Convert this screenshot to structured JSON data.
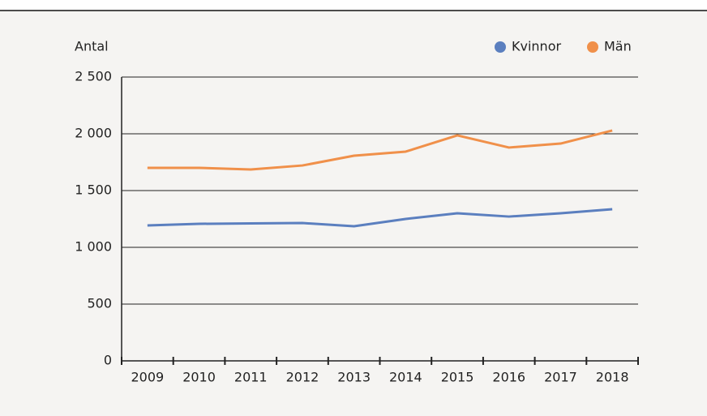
{
  "chart_data": {
    "type": "line",
    "y_label": "Antal",
    "categories": [
      "2009",
      "2010",
      "2011",
      "2012",
      "2013",
      "2014",
      "2015",
      "2016",
      "2017",
      "2018"
    ],
    "series": [
      {
        "name": "Kvinnor",
        "color": "#5b7fbf",
        "values": [
          1193,
          1207,
          1211,
          1214,
          1186,
          1250,
          1300,
          1271,
          1300,
          1336
        ]
      },
      {
        "name": "Män",
        "color": "#f0904a",
        "values": [
          1700,
          1700,
          1686,
          1721,
          1807,
          1843,
          1986,
          1879,
          1914,
          2029
        ]
      }
    ],
    "ylim": [
      0,
      2500
    ],
    "yticks": [
      0,
      500,
      {
        "value": 1000,
        "label": "1 000"
      },
      {
        "value": 1500,
        "label": "1 500"
      },
      {
        "value": 2000,
        "label": "2 000"
      },
      {
        "value": 2500,
        "label": "2 500"
      }
    ],
    "grid": true,
    "legend": "top-right"
  }
}
